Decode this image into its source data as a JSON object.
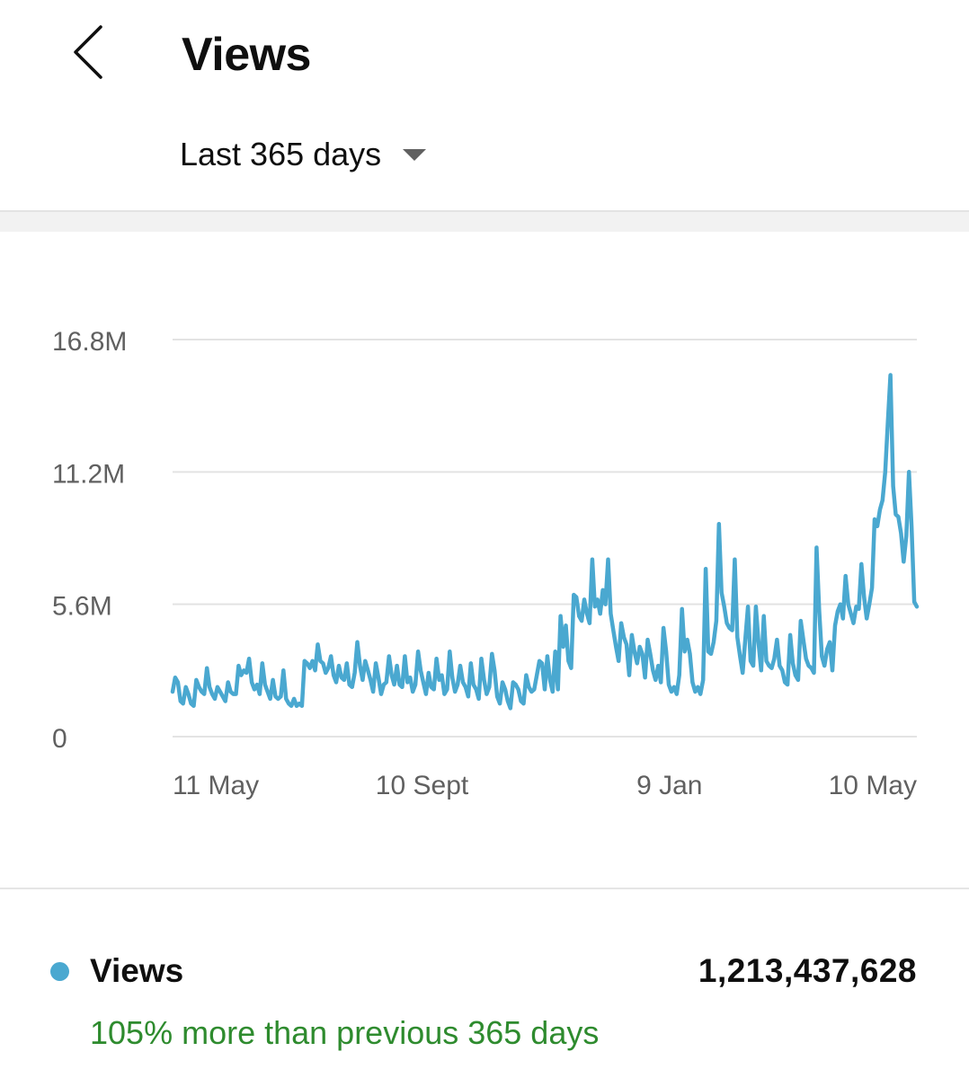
{
  "header": {
    "title": "Views",
    "period_label": "Last 365 days"
  },
  "icons": {
    "back": "chevron-left-icon",
    "dropdown": "caret-down-icon"
  },
  "colors": {
    "series": "#4aa8d0",
    "comparison_text": "#2e8b2e"
  },
  "chart_data": {
    "type": "line",
    "ylim": [
      0,
      16.8
    ],
    "yticks": [
      {
        "value": 16.8,
        "label": "16.8M"
      },
      {
        "value": 11.2,
        "label": "11.2M"
      },
      {
        "value": 5.6,
        "label": "5.6M"
      },
      {
        "value": 0,
        "label": "0"
      }
    ],
    "xticks": [
      {
        "day": 0,
        "label": "11 May"
      },
      {
        "day": 122,
        "label": "10 Sept"
      },
      {
        "day": 243,
        "label": "9 Jan"
      },
      {
        "day": 364,
        "label": "10 May"
      }
    ],
    "series": [
      {
        "values": [
          1.9,
          2.5,
          2.3,
          1.5,
          1.4,
          2.1,
          1.8,
          1.4,
          1.3,
          2.4,
          2.1,
          1.9,
          1.8,
          2.9,
          2.1,
          1.8,
          1.6,
          2.1,
          1.9,
          1.7,
          1.5,
          2.3,
          1.9,
          1.8,
          1.8,
          3.0,
          2.6,
          2.8,
          2.7,
          3.3,
          2.3,
          2.0,
          2.2,
          1.8,
          3.1,
          2.2,
          1.9,
          1.6,
          2.4,
          1.7,
          1.6,
          1.7,
          2.8,
          1.6,
          1.4,
          1.3,
          1.6,
          1.3,
          1.4,
          1.3,
          3.2,
          3.1,
          2.9,
          3.2,
          2.8,
          3.9,
          3.2,
          3.1,
          2.7,
          2.9,
          3.4,
          2.6,
          2.3,
          3.0,
          2.5,
          2.4,
          3.1,
          2.2,
          2.1,
          2.7,
          4.0,
          3.0,
          2.4,
          3.2,
          2.8,
          2.4,
          1.9,
          3.1,
          2.5,
          1.8,
          2.2,
          2.3,
          3.4,
          2.6,
          2.2,
          3.0,
          2.2,
          2.1,
          3.4,
          2.3,
          2.5,
          1.9,
          2.2,
          3.6,
          2.8,
          2.3,
          1.8,
          2.7,
          2.1,
          2.0,
          3.3,
          2.4,
          2.6,
          1.8,
          2.0,
          3.6,
          2.5,
          1.9,
          2.2,
          3.0,
          2.3,
          2.1,
          1.7,
          3.1,
          2.2,
          2.0,
          1.6,
          3.3,
          2.4,
          1.8,
          2.1,
          3.5,
          2.8,
          1.7,
          1.4,
          2.3,
          2.0,
          1.5,
          1.2,
          2.3,
          2.2,
          2.0,
          1.5,
          1.4,
          2.6,
          2.1,
          1.9,
          2.0,
          2.6,
          3.2,
          3.1,
          2.0,
          3.4,
          2.4,
          1.9,
          3.6,
          2.0,
          5.1,
          3.8,
          4.7,
          3.2,
          2.9,
          6.0,
          5.9,
          5.1,
          4.9,
          5.8,
          5.2,
          4.8,
          7.5,
          5.5,
          5.8,
          5.2,
          6.2,
          5.6,
          7.5,
          5.2,
          4.5,
          3.8,
          3.2,
          4.8,
          4.2,
          3.9,
          2.6,
          4.3,
          3.6,
          3.1,
          3.8,
          3.5,
          2.5,
          4.1,
          3.5,
          2.8,
          2.4,
          3.0,
          2.3,
          4.6,
          3.6,
          2.2,
          1.9,
          2.1,
          1.8,
          2.6,
          5.4,
          3.6,
          4.1,
          3.5,
          2.3,
          1.9,
          2.1,
          1.8,
          2.4,
          7.1,
          3.6,
          3.5,
          4.0,
          4.9,
          9.0,
          6.1,
          5.5,
          4.8,
          4.6,
          4.5,
          7.5,
          4.2,
          3.4,
          2.7,
          4.1,
          5.5,
          3.2,
          3.0,
          5.5,
          4.0,
          2.8,
          5.1,
          3.2,
          3.0,
          2.9,
          3.3,
          4.1,
          3.0,
          2.8,
          2.3,
          2.2,
          4.3,
          3.1,
          2.6,
          2.4,
          4.9,
          4.1,
          3.3,
          3.0,
          2.9,
          2.7,
          8.0,
          5.3,
          3.4,
          3.0,
          3.7,
          4.0,
          2.8,
          4.7,
          5.3,
          5.6,
          5.0,
          6.8,
          5.6,
          5.2,
          4.8,
          5.5,
          5.4,
          7.3,
          5.9,
          5.0,
          5.6,
          6.3,
          9.2,
          8.9,
          9.6,
          10.0,
          11.2,
          13.3,
          15.3,
          10.6,
          9.4,
          9.3,
          8.6,
          7.4,
          8.5,
          11.2,
          8.9,
          5.7,
          5.5
        ]
      }
    ]
  },
  "legend": {
    "label": "Views",
    "total": "1,213,437,628",
    "comparison": "105% more than previous 365 days"
  }
}
